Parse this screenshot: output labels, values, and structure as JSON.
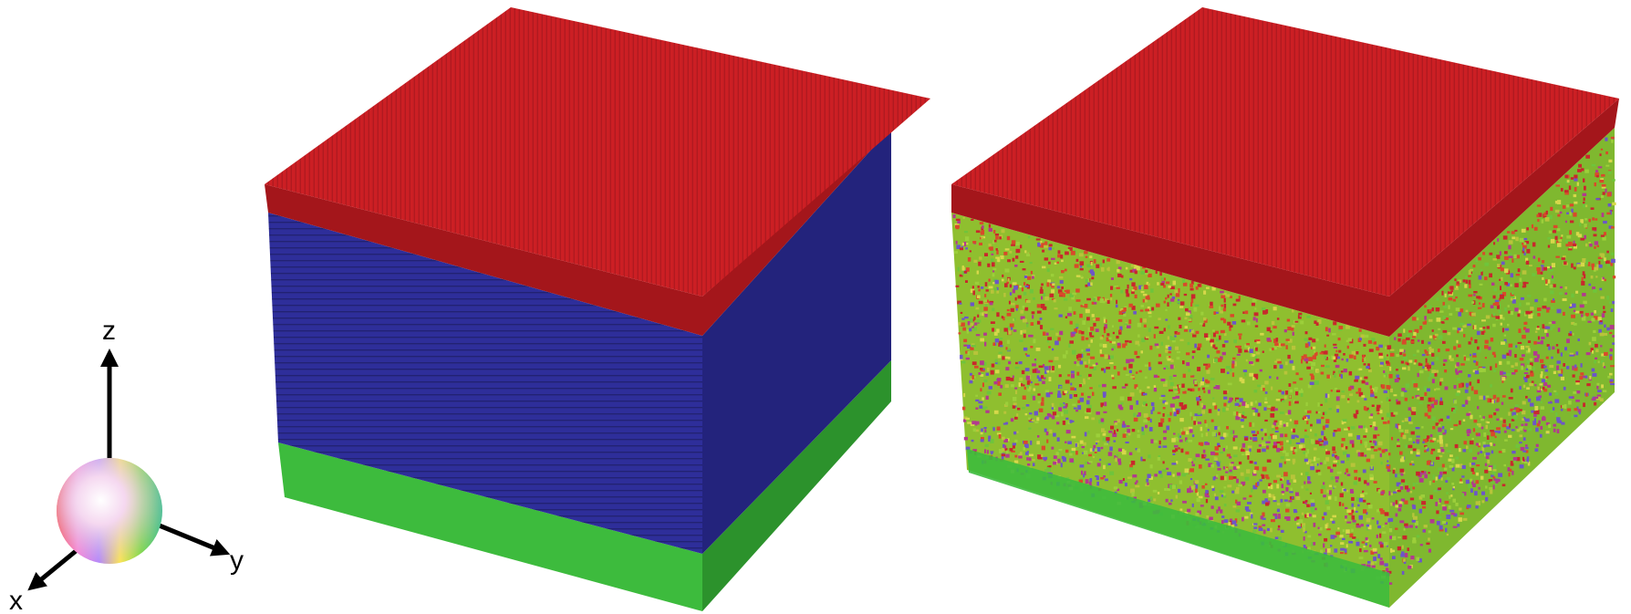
{
  "axes": {
    "labels": {
      "z": "z",
      "x": "x",
      "y": "y"
    }
  },
  "colors": {
    "top_layer": "#cc1f24",
    "top_layer_dark": "#a4161b",
    "middle_layer": "#2e2e9a",
    "middle_layer_dark": "#23237c",
    "bottom_layer": "#3dbb3d",
    "bottom_layer_dark": "#2c922c",
    "random_palette": [
      "#c8282c",
      "#d84a2a",
      "#b8c43a",
      "#9ccf3a",
      "#6fc43b",
      "#d6d84a",
      "#b23a8e",
      "#6c56c8",
      "#e26a2c",
      "#8fbf2f"
    ]
  },
  "icons": [
    "orientation-color-sphere-icon",
    "axis-arrow-icon"
  ]
}
